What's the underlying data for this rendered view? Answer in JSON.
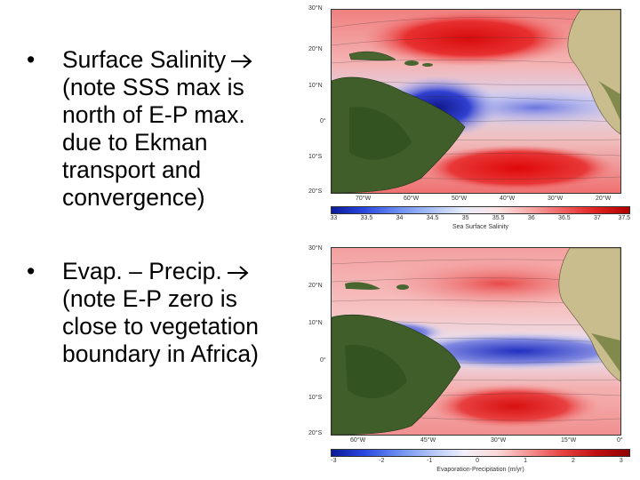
{
  "bullets": [
    {
      "first_line": "Surface Salinity",
      "rest_lines": [
        "(note SSS max is",
        "north of E-P max.",
        "due to Ekman",
        "transport and",
        "convergence)"
      ]
    },
    {
      "first_line": "Evap. – Precip.",
      "rest_lines": [
        "(note E-P zero is",
        "close to vegetation",
        "boundary in Africa)"
      ]
    }
  ],
  "map_top": {
    "lat_labels": [
      "30°N",
      "20°N",
      "10°N",
      "0°",
      "10°S",
      "20°S"
    ],
    "lon_labels": [
      "70°W",
      "60°W",
      "50°W",
      "40°W",
      "30°W",
      "20°W"
    ],
    "colorbar_ticks": [
      "33",
      "33.5",
      "34",
      "34.5",
      "35",
      "35.5",
      "36",
      "36.5",
      "37",
      "37.5"
    ],
    "colorbar_title": "Sea Surface Salinity"
  },
  "map_bottom": {
    "lat_labels": [
      "30°N",
      "20°N",
      "10°N",
      "0°",
      "10°S",
      "20°S"
    ],
    "lon_labels": [
      "60°W",
      "45°W",
      "30°W",
      "15°W",
      "0°"
    ],
    "colorbar_ticks": [
      "-3",
      "-2",
      "-1",
      "0",
      "1",
      "2",
      "3"
    ],
    "colorbar_title": "Evaporation-Precipitation (m/yr)"
  },
  "colors": {
    "salty_red": "#e01818",
    "fresh_blue": "#1a2ec8",
    "land_green": "#3a5a28",
    "africa_tan": "#c8bc8c"
  }
}
